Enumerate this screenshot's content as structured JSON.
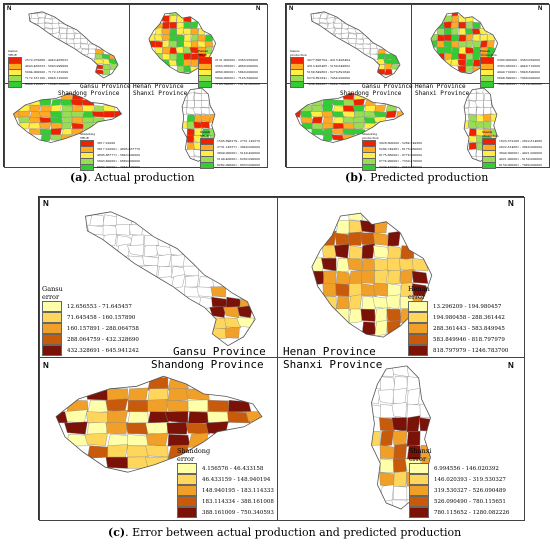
{
  "colors": {
    "green": "#33cc33",
    "lightgreen": "#99dd55",
    "yellow": "#ffee44",
    "orange": "#ffaa22",
    "red": "#ee2200",
    "darkred": "#aa1100",
    "err1": "#ffffaa",
    "err2": "#ffd65c",
    "err3": "#f0a028",
    "err4": "#c85a0c",
    "err5": "#7a1208"
  },
  "panel_a": {
    "gansu": {
      "name": "Gansu",
      "metric": "TRUE",
      "legend": [
        "2572.079688 - 4043.465632",
        "4043.465633 - 5093.999999",
        "5094.000000 - 7172.181099",
        "7172.181100 - 8946.120000",
        "8946.120001 - 10043.500000"
      ],
      "label": "Gansu Province"
    },
    "henan": {
      "name": "Henan",
      "metric": "TRUE",
      "legend": [
        "2131.000000 - 3363.050000",
        "3363.050001 - 4860.000000",
        "4860.000001 - 5840.000000",
        "5840.000001 - 7145.590000",
        "7145.590001 - 10132.000000"
      ],
      "label": "Henan Province"
    },
    "shandong": {
      "name": "Shandong",
      "metric": "TRUE",
      "legend": [
        "3817.22000",
        "3817.220001 - 4895.867770",
        "4895.867771 - 5843.600000",
        "5843.600001 - 6880.000000",
        "6880.000001 - 7954.770000"
      ],
      "label": "Shandong Province"
    },
    "shanxi": {
      "name": "Shanxi",
      "metric": "TRUE",
      "legend": [
        "1505.896279 - 2731.145570",
        "2731.145571 - 3849.000000",
        "3849.000001 - 5149.400000",
        "5149.400001 - 6282.090000",
        "6282.090001 - 8033.000000"
      ],
      "label": "Shanxi Province"
    }
  },
  "panel_b": {
    "gansu": {
      "name": "Gansu",
      "metric": "production",
      "legend": [
        "3477.696704 - 4313.495464",
        "4313.495465 - 5169.649802",
        "5169.649803 - 6270.891840",
        "6270.891841 - 7454.920000",
        "7454.920001 - 8924.700000"
      ],
      "label": "Gansu Province"
    },
    "henan": {
      "name": "Henan",
      "metric": "production",
      "legend": [
        "2380.000000 - 3363.050000",
        "3363.050001 - 4940.710000",
        "4940.710001 - 5848.390000",
        "5848.390001 - 7060.000000",
        "7060.000001 - 10129.000000"
      ],
      "label": "Henan Province"
    },
    "shandong": {
      "name": "Shandong",
      "metric": "production",
      "legend": [
        "3928.600000 - 5284.749360",
        "5284.749361 - 6175.660000",
        "6175.660001 - 6774.900000",
        "6774.900001 - 7330.470000",
        "7330.470001 - 8053.980000"
      ],
      "label": "Shandong Province"
    },
    "shanxi": {
      "name": "Shanxi",
      "metric": "production",
      "legend": [
        "1823.372208 - 2822.814680",
        "2822.814681 - 3840.000000",
        "3840.000001 - 4921.000000",
        "4921.000001 - 6150.000000",
        "6150.000001 - 7980.000000"
      ],
      "label": "Shanxi Province"
    }
  },
  "panel_c": {
    "gansu": {
      "name": "Gansu",
      "metric": "error",
      "legend": [
        "12.656553 - 71.645457",
        "71.645458 - 160.157890",
        "160.157891 - 288.064758",
        "288.064759 - 432.328690",
        "432.328691 - 645.941242"
      ],
      "label": "Gansu Province"
    },
    "henan": {
      "name": "Henan",
      "metric": "error",
      "legend": [
        "13.296209 - 194.980457",
        "194.980458 - 288.361442",
        "288.361443 - 583.849945",
        "583.849946 - 818.797979",
        "818.797979 - 1246.783700"
      ],
      "label": "Henan Province"
    },
    "shandong": {
      "name": "Shandong",
      "metric": "error",
      "legend": [
        "4.156576 - 46.433158",
        "46.433159 - 148.940194",
        "148.940195 - 183.114333",
        "183.114334 - 388.161008",
        "388.161009 - 750.340593"
      ],
      "label": "Shandong Province"
    },
    "shanxi": {
      "name": "Shanxi",
      "metric": "error",
      "legend": [
        "6.994556 - 146.020392",
        "146.020393 - 319.530327",
        "319.530327 - 526.090489",
        "526.090490 - 780.115651",
        "780.115652 - 1280.082226"
      ],
      "label": "Shanxi Province"
    }
  },
  "north": "N",
  "captions": {
    "a_label": "(a)",
    "a_text": ". Actual production",
    "b_label": "(b)",
    "b_text": ". Predicted production",
    "c_label": "(c)",
    "c_text": ". Error between actual production and predicted production"
  }
}
